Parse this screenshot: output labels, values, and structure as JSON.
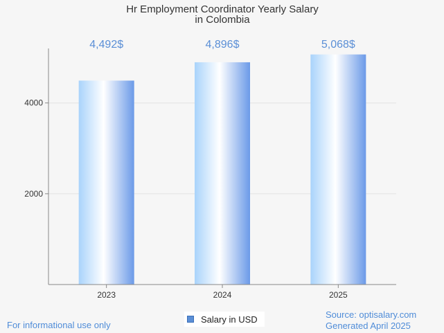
{
  "chart_data": {
    "type": "bar",
    "title_lines": [
      "Hr Employment Coordinator Yearly Salary",
      "in Colombia"
    ],
    "categories": [
      "2023",
      "2024",
      "2025"
    ],
    "series": [
      {
        "name": "Salary in USD",
        "values": [
          4492,
          4896,
          5068
        ]
      }
    ],
    "data_labels": [
      "4,492$",
      "4,896$",
      "5,068$"
    ],
    "y_ticks": [
      2000,
      4000
    ],
    "ylim": [
      0,
      5200
    ],
    "grid": true,
    "legend_position": "bottom"
  },
  "footer": {
    "left": "For informational use only",
    "source": "Source: optisalary.com",
    "generated": "Generated April 2025"
  },
  "colors": {
    "bar_edge": "#9ec8f7",
    "bar_light": "#ffffff",
    "bar_dark": "#6b9ae8",
    "label": "#5b8fd6",
    "footer": "#4f8cd8"
  }
}
